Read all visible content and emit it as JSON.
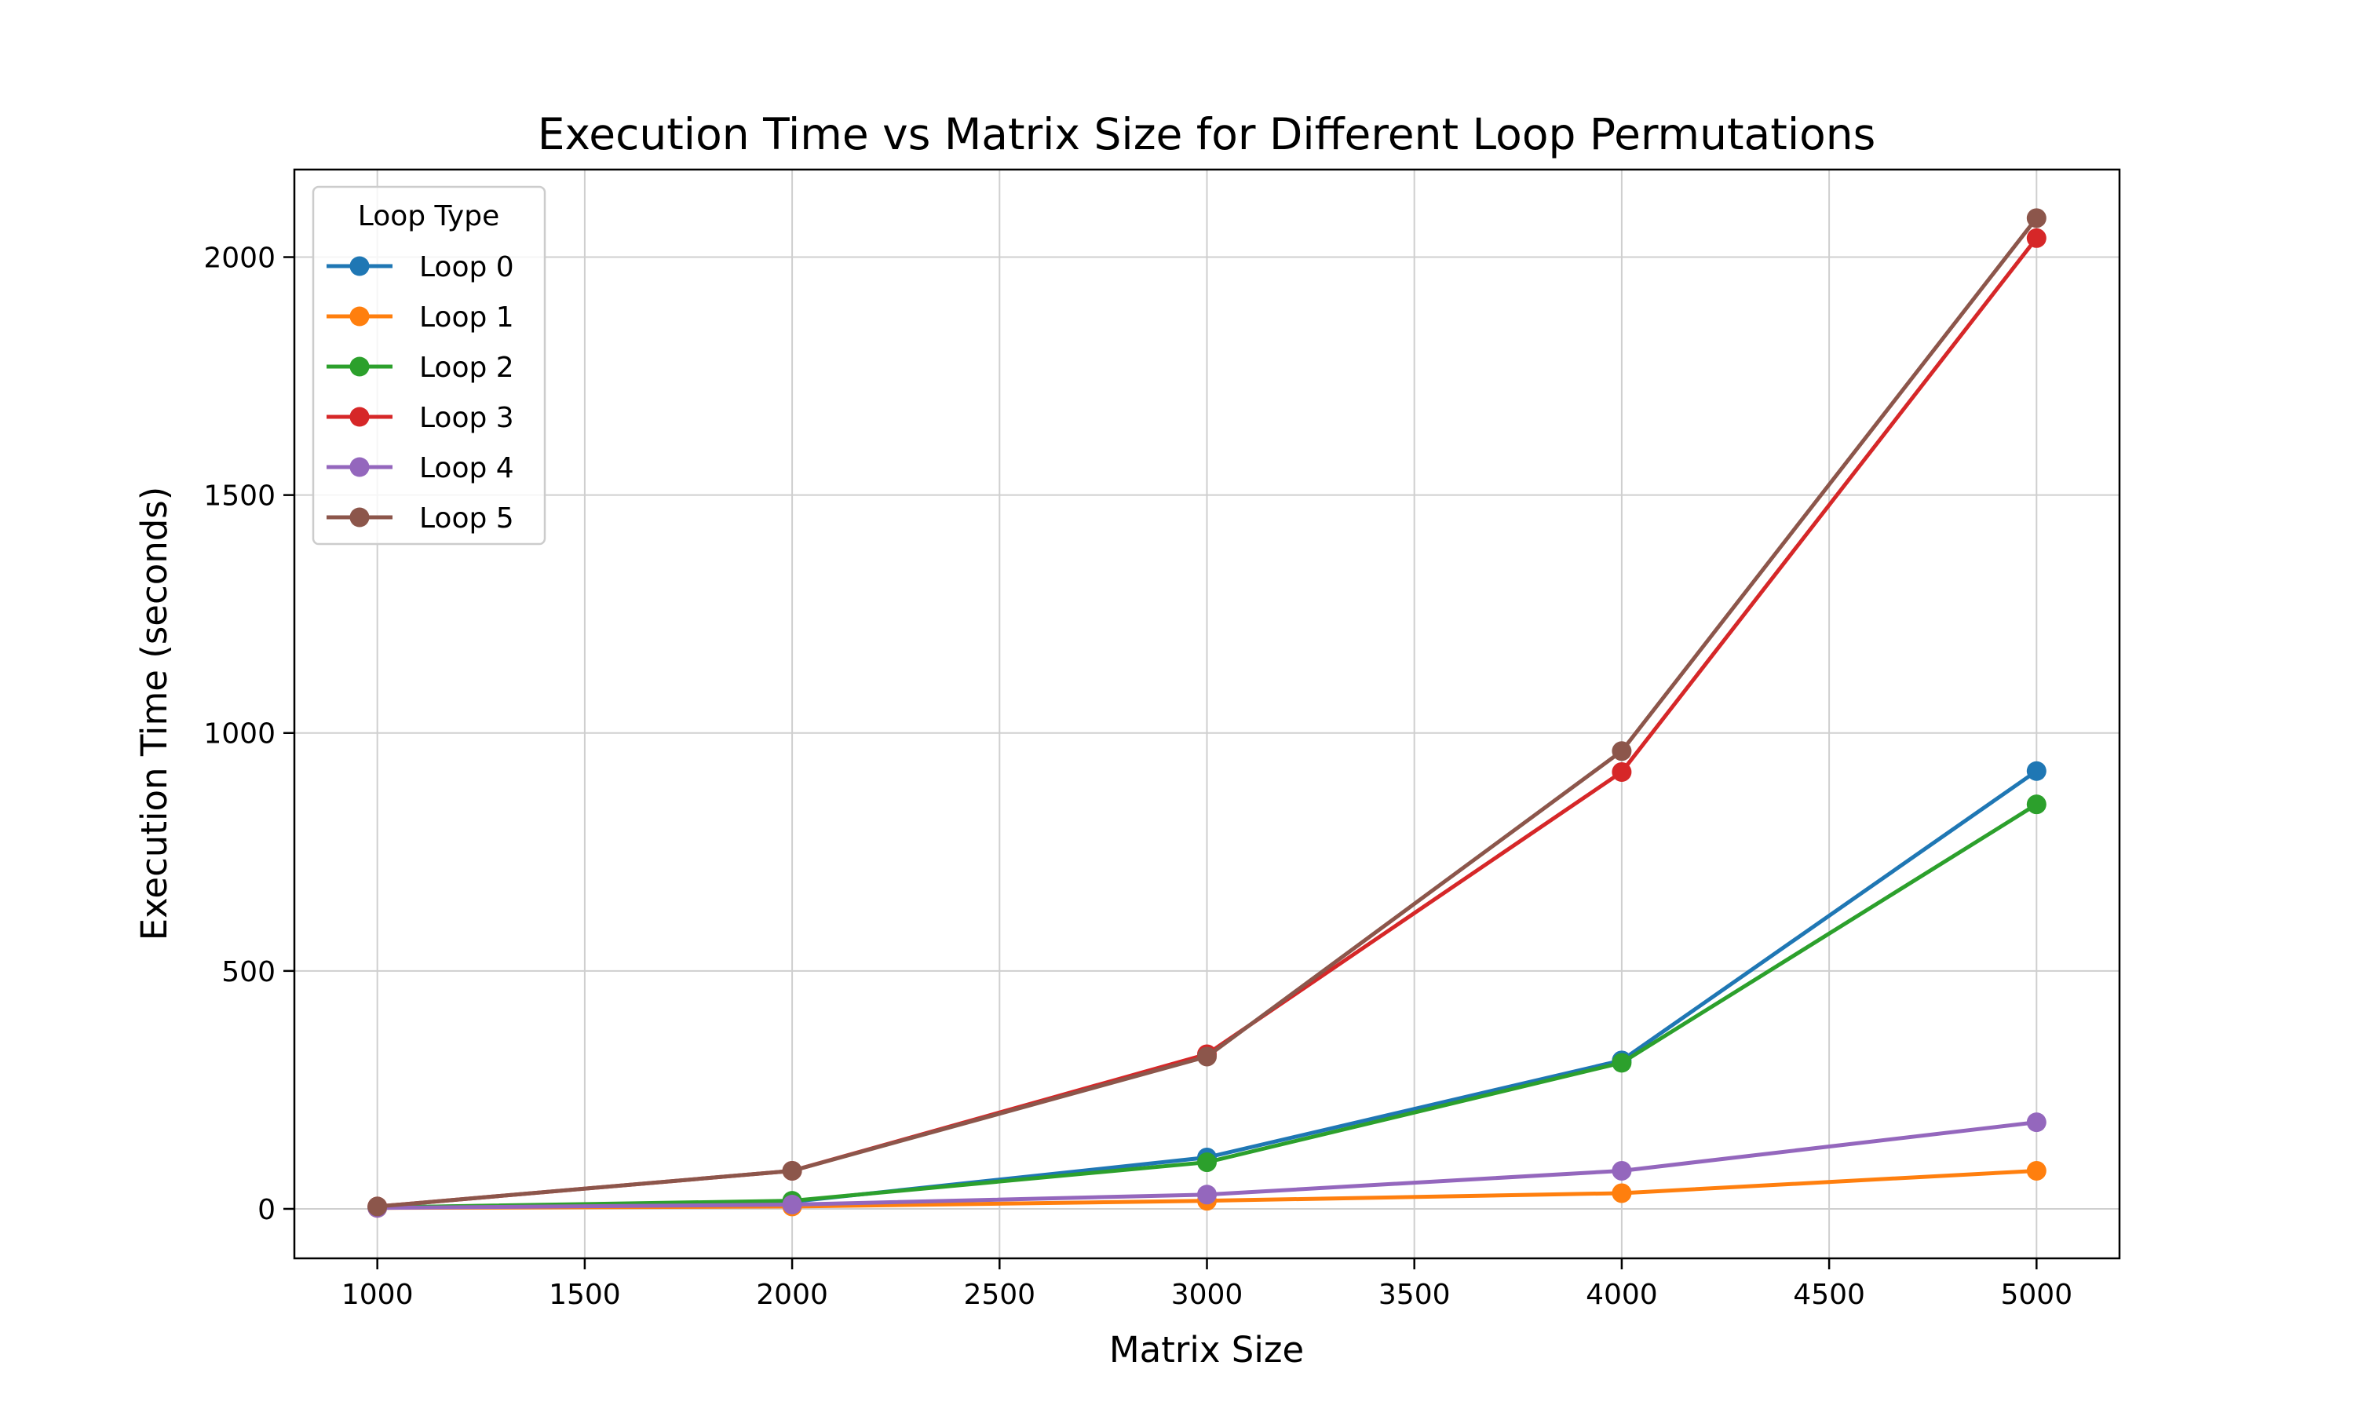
{
  "chart_data": {
    "type": "line",
    "title": "Execution Time vs Matrix Size for Different Loop Permutations",
    "xlabel": "Matrix Size",
    "ylabel": "Execution Time (seconds)",
    "x": [
      1000,
      2000,
      3000,
      4000,
      5000
    ],
    "xlim": [
      800,
      5200
    ],
    "ylim": [
      -104,
      2184
    ],
    "xticks": [
      1000,
      1500,
      2000,
      2500,
      3000,
      3500,
      4000,
      4500,
      5000
    ],
    "yticks": [
      0,
      500,
      1000,
      1500,
      2000
    ],
    "grid": true,
    "legend": {
      "title": "Loop Type",
      "placement": "top-left"
    },
    "series": [
      {
        "name": "Loop 0",
        "color": "#1f77b4",
        "values": [
          3,
          15,
          108,
          312,
          920
        ]
      },
      {
        "name": "Loop 1",
        "color": "#ff7f0e",
        "values": [
          2,
          5,
          17,
          33,
          80
        ]
      },
      {
        "name": "Loop 2",
        "color": "#2ca02c",
        "values": [
          3,
          17,
          98,
          307,
          850
        ]
      },
      {
        "name": "Loop 3",
        "color": "#d62728",
        "values": [
          5,
          80,
          325,
          918,
          2040
        ]
      },
      {
        "name": "Loop 4",
        "color": "#9467bd",
        "values": [
          2,
          9,
          30,
          80,
          182
        ]
      },
      {
        "name": "Loop 5",
        "color": "#8c564b",
        "values": [
          5,
          80,
          320,
          962,
          2082
        ]
      }
    ]
  }
}
